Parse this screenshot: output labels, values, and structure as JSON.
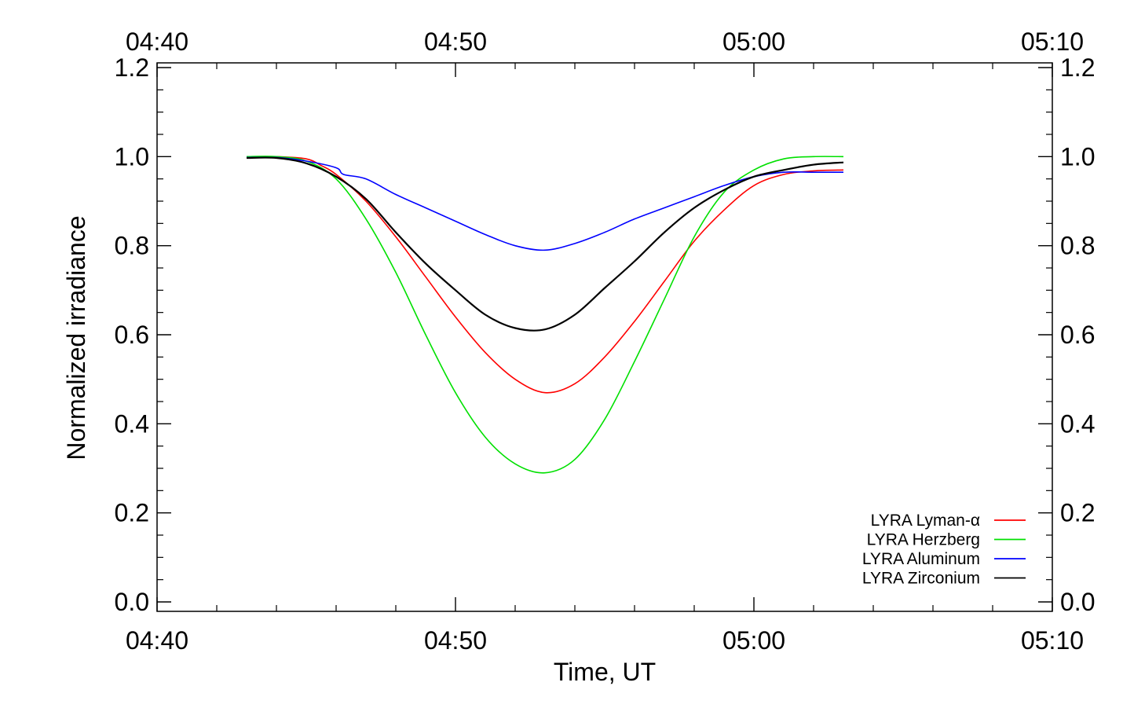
{
  "chart_data": {
    "type": "line",
    "xlabel": "Time, UT",
    "ylabel": "Normalized irradiance",
    "xlim": [
      "04:40",
      "05:10"
    ],
    "ylim": [
      0.0,
      1.2
    ],
    "x_ticks": [
      "04:40",
      "04:50",
      "05:00",
      "05:10"
    ],
    "y_ticks": [
      "0.0",
      "0.2",
      "0.4",
      "0.6",
      "0.8",
      "1.0",
      "1.2"
    ],
    "legend_position": "bottom-right",
    "grid": false,
    "series": [
      {
        "name": "LYRA Lyman-α",
        "color": "#ff0000",
        "points": [
          [
            "04:43",
            1.0
          ],
          [
            "04:44",
            1.0
          ],
          [
            "04:45",
            0.995
          ],
          [
            "04:45:30",
            0.98
          ],
          [
            "04:46",
            0.96
          ],
          [
            "04:47",
            0.9
          ],
          [
            "04:48",
            0.82
          ],
          [
            "04:49",
            0.73
          ],
          [
            "04:50",
            0.64
          ],
          [
            "04:51",
            0.56
          ],
          [
            "04:52",
            0.5
          ],
          [
            "04:53",
            0.47
          ],
          [
            "04:54",
            0.49
          ],
          [
            "04:55",
            0.55
          ],
          [
            "04:56",
            0.63
          ],
          [
            "04:57",
            0.72
          ],
          [
            "04:58",
            0.81
          ],
          [
            "04:59",
            0.88
          ],
          [
            "05:00",
            0.935
          ],
          [
            "05:01",
            0.96
          ],
          [
            "05:02",
            0.968
          ],
          [
            "05:03",
            0.97
          ]
        ]
      },
      {
        "name": "LYRA Herzberg",
        "color": "#00e000",
        "points": [
          [
            "04:43",
            1.0
          ],
          [
            "04:44",
            1.0
          ],
          [
            "04:45",
            0.99
          ],
          [
            "04:46",
            0.95
          ],
          [
            "04:47",
            0.86
          ],
          [
            "04:48",
            0.74
          ],
          [
            "04:49",
            0.6
          ],
          [
            "04:50",
            0.47
          ],
          [
            "04:51",
            0.37
          ],
          [
            "04:52",
            0.31
          ],
          [
            "04:53",
            0.29
          ],
          [
            "04:54",
            0.32
          ],
          [
            "04:55",
            0.41
          ],
          [
            "04:56",
            0.54
          ],
          [
            "04:57",
            0.68
          ],
          [
            "04:58",
            0.82
          ],
          [
            "04:59",
            0.92
          ],
          [
            "05:00",
            0.97
          ],
          [
            "05:01",
            0.995
          ],
          [
            "05:02",
            1.0
          ],
          [
            "05:03",
            1.0
          ]
        ]
      },
      {
        "name": "LYRA Aluminum",
        "color": "#0000ff",
        "points": [
          [
            "04:43",
            0.998
          ],
          [
            "04:44",
            0.998
          ],
          [
            "04:45",
            0.99
          ],
          [
            "04:46",
            0.975
          ],
          [
            "04:46:15",
            0.96
          ],
          [
            "04:47",
            0.95
          ],
          [
            "04:48",
            0.915
          ],
          [
            "04:49",
            0.885
          ],
          [
            "04:50",
            0.855
          ],
          [
            "04:51",
            0.825
          ],
          [
            "04:52",
            0.8
          ],
          [
            "04:53",
            0.79
          ],
          [
            "04:54",
            0.805
          ],
          [
            "04:55",
            0.83
          ],
          [
            "04:56",
            0.86
          ],
          [
            "04:57",
            0.885
          ],
          [
            "04:58",
            0.91
          ],
          [
            "04:59",
            0.935
          ],
          [
            "05:00",
            0.955
          ],
          [
            "05:01",
            0.965
          ],
          [
            "05:02",
            0.965
          ],
          [
            "05:03",
            0.965
          ]
        ]
      },
      {
        "name": "LYRA Zirconium",
        "color": "#000000",
        "points": [
          [
            "04:43",
            0.997
          ],
          [
            "04:44",
            0.997
          ],
          [
            "04:45",
            0.985
          ],
          [
            "04:46",
            0.955
          ],
          [
            "04:47",
            0.905
          ],
          [
            "04:48",
            0.83
          ],
          [
            "04:49",
            0.76
          ],
          [
            "04:50",
            0.7
          ],
          [
            "04:51",
            0.645
          ],
          [
            "04:52",
            0.615
          ],
          [
            "04:53",
            0.612
          ],
          [
            "04:54",
            0.645
          ],
          [
            "04:55",
            0.705
          ],
          [
            "04:56",
            0.765
          ],
          [
            "04:57",
            0.83
          ],
          [
            "04:58",
            0.885
          ],
          [
            "04:59",
            0.925
          ],
          [
            "05:00",
            0.955
          ],
          [
            "05:01",
            0.97
          ],
          [
            "05:02",
            0.982
          ],
          [
            "05:03",
            0.987
          ]
        ]
      }
    ]
  }
}
